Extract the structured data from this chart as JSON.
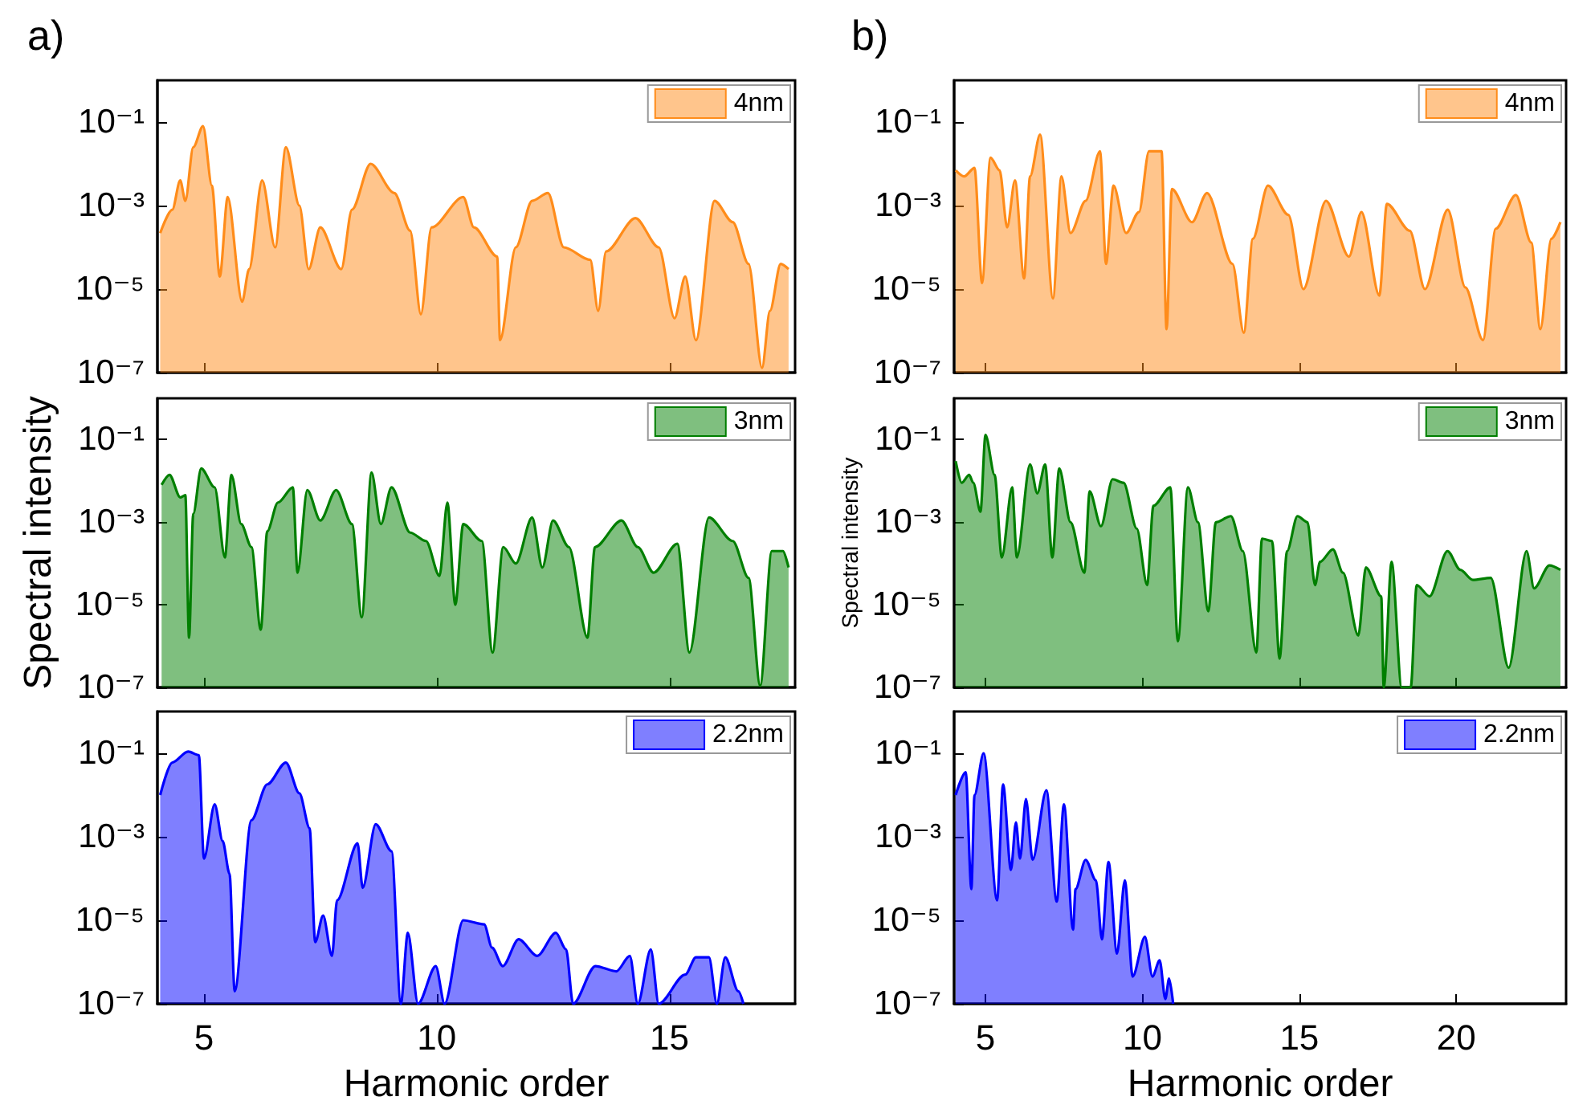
{
  "chart_data": [
    {
      "type": "area",
      "title": "a)",
      "x": [
        4.06,
        4.32,
        4.49,
        4.6,
        4.77,
        4.98,
        5.17,
        5.34,
        5.51,
        5.82,
        5.97,
        6.25,
        6.53,
        6.76,
        7.05,
        7.25,
        7.5,
        7.95,
        8.18,
        8.58,
        9.09,
        9.43,
        9.66,
        9.89,
        10.57,
        10.8,
        11.3,
        11.36,
        11.7,
        12.05,
        12.39,
        12.73,
        13.3,
        13.47,
        13.64,
        14.27,
        14.77,
        15.11,
        15.34,
        15.57,
        15.97,
        16.36,
        16.7,
        16.99,
        17.16,
        17.39,
        17.56
      ],
      "series": [
        {
          "name": "4nm",
          "color": "#ff8c1a",
          "values": [
            0.00022,
            0.0008,
            0.004,
            0.0013,
            0.025,
            0.08,
            0.003,
            2e-05,
            0.0016,
            5e-06,
            3e-05,
            0.004,
            0.0001,
            0.025,
            0.001,
            3e-05,
            0.0003,
            3e-05,
            0.0008,
            0.01,
            0.002,
            0.00025,
            2.5e-06,
            0.0003,
            0.0016,
            0.0003,
            6e-05,
            6e-07,
            0.0001,
            0.0013,
            0.002,
            0.0001,
            5e-05,
            3e-06,
            8e-05,
            0.0005,
            0.0001,
            2e-06,
            2e-05,
            6e-07,
            0.0013,
            0.0004,
            4e-05,
            1.3e-07,
            3e-06,
            4e-05,
            3e-05
          ]
        }
      ],
      "xlim": [
        4,
        17.7
      ],
      "xticks": [
        5,
        10,
        15
      ],
      "ylim": [
        1e-07,
        1
      ],
      "yticks": [
        {
          "value": 1e-07,
          "label": "10⁻⁷"
        },
        {
          "value": 1e-05,
          "label": "10⁻⁵"
        },
        {
          "value": 0.001,
          "label": "10⁻³"
        },
        {
          "value": 0.1,
          "label": "10⁻¹"
        }
      ],
      "log": "y",
      "legend": "top right",
      "tick_labels": "y"
    },
    {
      "type": "area",
      "ylabel": "Spectral intensity",
      "x": [
        4.09,
        4.26,
        4.49,
        4.6,
        4.68,
        4.77,
        4.94,
        5.23,
        5.45,
        5.59,
        5.8,
        6.02,
        6.22,
        6.36,
        6.59,
        6.91,
        7.01,
        7.22,
        7.5,
        7.84,
        8.18,
        8.39,
        8.6,
        8.8,
        9.03,
        9.43,
        9.77,
        10.06,
        10.23,
        10.4,
        10.57,
        10.97,
        11.2,
        11.43,
        11.7,
        12.05,
        12.27,
        12.5,
        12.84,
        13.24,
        13.4,
        13.97,
        14.32,
        14.66,
        15.17,
        15.43,
        15.85,
        16.36,
        16.7,
        16.95,
        17.2,
        17.44,
        17.56
      ],
      "series": [
        {
          "name": "3nm",
          "color": "#007f00",
          "values": [
            0.008,
            0.014,
            0.004,
            0.0045,
            1.6e-06,
            0.0016,
            0.02,
            0.007,
            0.00014,
            0.014,
            0.0009,
            0.00025,
            2.5e-06,
            0.0006,
            0.003,
            0.007,
            6e-05,
            0.006,
            0.0011,
            0.006,
            0.0009,
            5e-06,
            0.016,
            0.0009,
            0.007,
            0.00056,
            0.00035,
            5e-05,
            0.003,
            1e-05,
            0.0009,
            0.00035,
            7e-07,
            0.00025,
            0.0001,
            0.0013,
            8e-05,
            0.0011,
            0.00025,
            1.6e-06,
            0.00025,
            0.0011,
            0.00025,
            6e-05,
            0.0003,
            7e-07,
            0.0013,
            0.00035,
            4.5e-05,
            1.1e-07,
            0.0002,
            0.0002,
            8e-05
          ]
        }
      ],
      "xlim": [
        4,
        17.7
      ],
      "xticks": [
        5,
        10,
        15
      ],
      "ylim": [
        1e-07,
        1
      ],
      "yticks": [
        {
          "value": 1e-07,
          "label": "10⁻⁷"
        },
        {
          "value": 1e-05,
          "label": "10⁻⁵"
        },
        {
          "value": 0.001,
          "label": "10⁻³"
        },
        {
          "value": 0.1,
          "label": "10⁻¹"
        }
      ],
      "log": "y",
      "legend": "top right",
      "tick_labels": "y"
    },
    {
      "type": "area",
      "xlabel": "Harmonic order",
      "x": [
        4.06,
        4.32,
        4.66,
        4.89,
        5.0,
        5.23,
        5.4,
        5.55,
        5.66,
        6.02,
        6.36,
        6.76,
        7.05,
        7.27,
        7.39,
        7.56,
        7.75,
        7.86,
        8.3,
        8.41,
        8.69,
        9.03,
        9.23,
        9.38,
        9.6,
        9.98,
        10.17,
        10.57,
        11.02,
        11.19,
        11.42,
        11.76,
        12.16,
        12.56,
        12.78,
        12.93,
        13.41,
        13.86,
        14.15,
        14.32,
        14.6,
        14.77,
        15.34,
        15.57,
        15.85,
        16.02,
        16.2,
        16.48,
        16.59
      ],
      "series": [
        {
          "name": "2.2nm",
          "color": "#0000ff",
          "values": [
            0.01,
            0.06,
            0.11,
            0.09,
            0.0003,
            0.006,
            0.0008,
            0.00013,
            2e-07,
            0.0025,
            0.018,
            0.06,
            0.011,
            0.0016,
            3e-06,
            1.3e-05,
            1.4e-06,
            3e-05,
            0.0007,
            6e-05,
            0.002,
            0.00045,
            1e-07,
            5e-06,
            1e-07,
            8e-07,
            1e-07,
            1e-05,
            8e-06,
            2.2e-06,
            8e-07,
            3.5e-06,
            1.4e-06,
            5e-06,
            2e-06,
            1e-07,
            8e-07,
            6e-07,
            1.4e-06,
            1e-07,
            2e-06,
            1e-07,
            5e-07,
            1.3e-06,
            1.3e-06,
            1e-07,
            1.3e-06,
            2e-07,
            1e-07
          ]
        }
      ],
      "xlim": [
        4,
        17.7
      ],
      "xticks": [
        5,
        10,
        15
      ],
      "ylim": [
        1e-07,
        1
      ],
      "yticks": [
        {
          "value": 1e-07,
          "label": "10⁻⁷"
        },
        {
          "value": 1e-05,
          "label": "10⁻⁵"
        },
        {
          "value": 0.001,
          "label": "10⁻³"
        },
        {
          "value": 0.1,
          "label": "10⁻¹"
        }
      ],
      "log": "y",
      "legend": "top right"
    },
    {
      "type": "area",
      "title": "b)",
      "x": [
        4.05,
        4.32,
        4.65,
        4.89,
        5.16,
        5.45,
        5.69,
        5.94,
        6.23,
        6.42,
        6.74,
        7.15,
        7.42,
        7.71,
        8.19,
        8.65,
        8.84,
        9.08,
        9.48,
        9.89,
        10.21,
        10.61,
        10.77,
        10.94,
        11.58,
        12.06,
        12.87,
        13.23,
        13.52,
        14.0,
        14.65,
        15.13,
        15.85,
        16.58,
        16.98,
        17.55,
        17.79,
        18.52,
        19.0,
        19.73,
        20.29,
        20.85,
        21.26,
        21.9,
        22.39,
        22.68,
        23.03,
        23.32
      ],
      "series": [
        {
          "name": "4nm",
          "color": "#ff8c1a",
          "values": [
            0.007,
            0.005,
            0.008,
            1.4e-05,
            0.014,
            0.007,
            0.0003,
            0.004,
            1.8e-05,
            0.005,
            0.05,
            6e-06,
            0.005,
            0.00022,
            0.0013,
            0.02,
            4e-05,
            0.003,
            0.00022,
            0.0007,
            0.02,
            0.02,
            1.1e-06,
            0.0025,
            0.0004,
            0.002,
            4e-05,
            9e-07,
            0.00016,
            0.003,
            0.0006,
            1e-05,
            0.0013,
            6e-05,
            0.0007,
            7e-06,
            0.0011,
            0.00025,
            1e-05,
            0.0008,
            1.1e-05,
            6e-07,
            0.00028,
            0.0018,
            0.00013,
            1.1e-06,
            0.00016,
            0.0004
          ]
        }
      ],
      "xlim": [
        4,
        23.5
      ],
      "xticks": [
        5,
        10,
        15,
        20
      ],
      "ylim": [
        1e-07,
        1
      ],
      "yticks": [
        {
          "value": 1e-07,
          "label": "10⁻⁷"
        },
        {
          "value": 1e-05,
          "label": "10⁻⁵"
        },
        {
          "value": 0.001,
          "label": "10⁻³"
        },
        {
          "value": 0.1,
          "label": "10⁻¹"
        }
      ],
      "log": "y",
      "legend": "top right",
      "tick_labels": "y"
    },
    {
      "type": "area",
      "ylabel": "Spectral intensity",
      "x": [
        4.05,
        4.24,
        4.48,
        4.61,
        4.84,
        5.0,
        5.29,
        5.52,
        5.85,
        6.0,
        6.42,
        6.65,
        6.9,
        7.13,
        7.35,
        7.71,
        8.15,
        8.32,
        8.68,
        9.05,
        9.4,
        9.82,
        10.15,
        10.35,
        10.89,
        11.13,
        11.45,
        11.77,
        12.1,
        12.34,
        12.82,
        13.2,
        13.63,
        13.81,
        14.13,
        14.37,
        14.61,
        14.94,
        15.26,
        15.5,
        15.66,
        16.07,
        16.39,
        16.88,
        17.12,
        17.61,
        17.69,
        17.94,
        18.26,
        18.55,
        18.74,
        19.15,
        19.72,
        20.13,
        20.53,
        21.1,
        21.67,
        22.24,
        22.48,
        22.97,
        23.32
      ],
      "series": [
        {
          "name": "3nm",
          "color": "#007f00",
          "values": [
            0.03,
            0.009,
            0.014,
            0.009,
            0.0018,
            0.13,
            0.014,
            0.00014,
            0.007,
            0.00014,
            0.025,
            0.005,
            0.025,
            0.00014,
            0.02,
            0.001,
            6e-05,
            0.0056,
            0.0008,
            0.011,
            0.009,
            0.0007,
            3e-05,
            0.0025,
            0.007,
            1.3e-06,
            0.007,
            0.001,
            7e-06,
            0.001,
            0.0014,
            0.0002,
            7e-07,
            0.0004,
            0.00035,
            5e-07,
            0.0002,
            0.0014,
            0.001,
            3e-05,
            0.00011,
            0.00022,
            6e-05,
            1.8e-06,
            8e-05,
            1.6e-05,
            1e-07,
            0.00011,
            1e-07,
            1e-07,
            3e-05,
            1.6e-05,
            0.0002,
            7e-05,
            4e-05,
            4.5e-05,
            3e-07,
            0.0002,
            2.5e-05,
            9e-05,
            7e-05
          ]
        }
      ],
      "xlim": [
        4,
        23.5
      ],
      "xticks": [
        5,
        10,
        15,
        20
      ],
      "ylim": [
        1e-07,
        1
      ],
      "yticks": [
        {
          "value": 1e-07,
          "label": "10⁻⁷"
        },
        {
          "value": 1e-05,
          "label": "10⁻⁵"
        },
        {
          "value": 0.001,
          "label": "10⁻³"
        },
        {
          "value": 0.1,
          "label": "10⁻¹"
        }
      ],
      "log": "y",
      "legend": "top right",
      "tick_labels": "y"
    },
    {
      "type": "area",
      "xlabel": "Harmonic order",
      "x": [
        4.05,
        4.37,
        4.55,
        4.65,
        4.94,
        5.37,
        5.56,
        5.81,
        5.97,
        6.1,
        6.29,
        6.5,
        6.94,
        7.27,
        7.5,
        7.79,
        7.87,
        8.19,
        8.52,
        8.71,
        8.92,
        9.19,
        9.44,
        9.69,
        10.08,
        10.32,
        10.55,
        10.73,
        10.85,
        10.98
      ],
      "series": [
        {
          "name": "2.2nm",
          "color": "#0000ff",
          "values": [
            0.01,
            0.035,
            5.6e-05,
            0.01,
            0.1,
            3e-05,
            0.018,
            0.00016,
            0.0022,
            0.0003,
            0.008,
            0.00028,
            0.013,
            2.8e-05,
            0.006,
            6e-06,
            5.6e-05,
            0.00028,
            9e-05,
            3.5e-06,
            0.00025,
            1.6e-06,
            9e-05,
            4.5e-07,
            4e-06,
            4.5e-07,
            1.1e-06,
            1.3e-07,
            4e-07,
            1e-07
          ]
        }
      ],
      "xlim": [
        4,
        23.5
      ],
      "xticks": [
        5,
        10,
        15,
        20
      ],
      "ylim": [
        1e-07,
        1
      ],
      "yticks": [
        {
          "value": 1e-07,
          "label": "10⁻⁷"
        },
        {
          "value": 1e-05,
          "label": "10⁻⁵"
        },
        {
          "value": 0.001,
          "label": "10⁻³"
        },
        {
          "value": 0.1,
          "label": "10⁻¹"
        }
      ],
      "log": "y",
      "legend": "top right"
    }
  ]
}
